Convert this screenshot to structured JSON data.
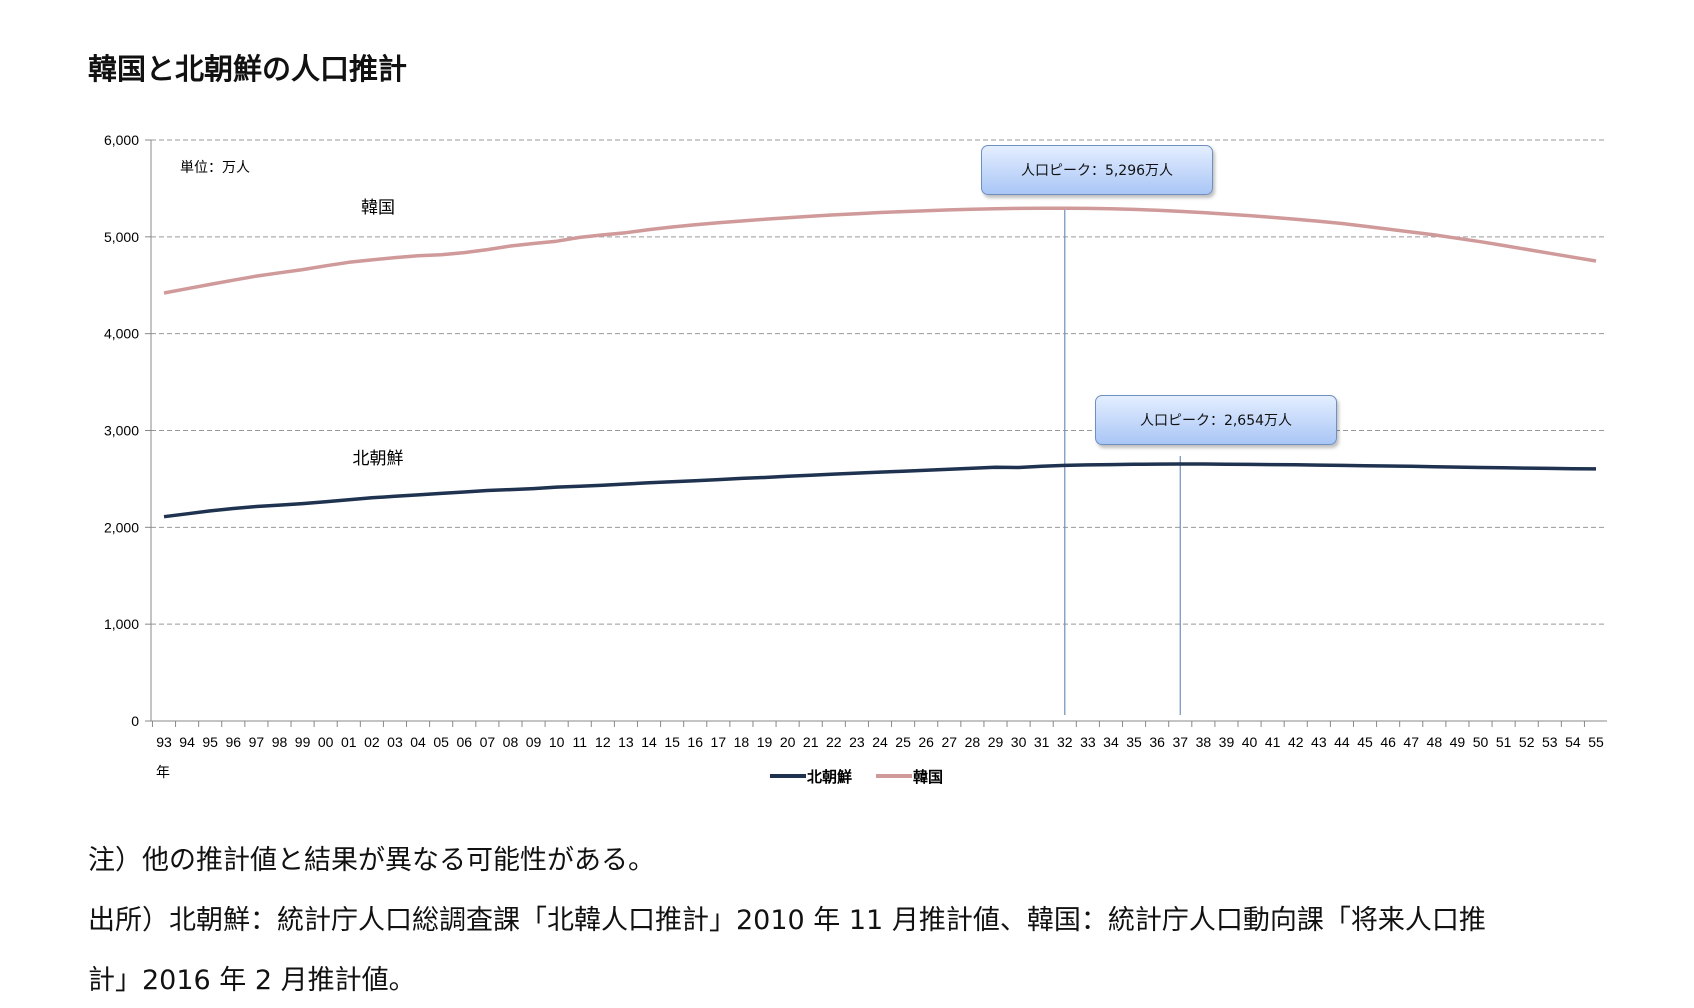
{
  "title": "韓国と北朝鮮の人口推計",
  "chart_data": {
    "type": "line",
    "unit_label": "単位：万人",
    "xlabel": "年",
    "ylim": [
      0,
      6000
    ],
    "yticks": [
      "0",
      "1,000",
      "2,000",
      "3,000",
      "4,000",
      "5,000",
      "6,000"
    ],
    "grid": true,
    "legend_position": "bottom",
    "categories": [
      "93",
      "94",
      "95",
      "96",
      "97",
      "98",
      "99",
      "00",
      "01",
      "02",
      "03",
      "04",
      "05",
      "06",
      "07",
      "08",
      "09",
      "10",
      "11",
      "12",
      "13",
      "14",
      "15",
      "16",
      "17",
      "18",
      "19",
      "20",
      "21",
      "22",
      "23",
      "24",
      "25",
      "26",
      "27",
      "28",
      "29",
      "30",
      "31",
      "32",
      "33",
      "34",
      "35",
      "36",
      "37",
      "38",
      "39",
      "40",
      "41",
      "42",
      "43",
      "44",
      "45",
      "46",
      "47",
      "48",
      "49",
      "50",
      "51",
      "52",
      "53",
      "54",
      "55"
    ],
    "series": [
      {
        "name": "北朝鮮",
        "color": "#1f3350",
        "inline_label": "北朝鮮",
        "values": [
          2110,
          2140,
          2170,
          2195,
          2215,
          2230,
          2245,
          2265,
          2285,
          2305,
          2320,
          2335,
          2350,
          2365,
          2380,
          2390,
          2400,
          2415,
          2425,
          2435,
          2448,
          2460,
          2470,
          2482,
          2493,
          2505,
          2515,
          2527,
          2538,
          2550,
          2560,
          2570,
          2580,
          2590,
          2600,
          2610,
          2620,
          2618,
          2630,
          2640,
          2645,
          2648,
          2651,
          2653,
          2654,
          2654,
          2652,
          2650,
          2648,
          2646,
          2643,
          2640,
          2636,
          2633,
          2630,
          2626,
          2622,
          2618,
          2615,
          2612,
          2609,
          2606,
          2603
        ]
      },
      {
        "name": "韓国",
        "color": "#d09a9a",
        "inline_label": "韓国",
        "values": [
          4420,
          4464,
          4509,
          4552,
          4595,
          4629,
          4662,
          4701,
          4737,
          4762,
          4786,
          4804,
          4814,
          4837,
          4868,
          4905,
          4931,
          4955,
          4994,
          5020,
          5043,
          5075,
          5102,
          5125,
          5145,
          5164,
          5181,
          5197,
          5212,
          5226,
          5239,
          5251,
          5261,
          5270,
          5278,
          5285,
          5290,
          5294,
          5296,
          5296,
          5294,
          5289,
          5283,
          5274,
          5263,
          5250,
          5235,
          5219,
          5201,
          5181,
          5160,
          5138,
          5110,
          5080,
          5050,
          5020,
          4985,
          4950,
          4910,
          4870,
          4830,
          4790,
          4750
        ]
      }
    ],
    "annotations": [
      {
        "text": "人口ピーク：5,296万人",
        "x": "32",
        "series": "韓国"
      },
      {
        "text": "人口ピーク：2,654万人",
        "x": "37",
        "series": "北朝鮮"
      }
    ]
  },
  "notes": [
    "注）他の推計値と結果が異なる可能性がある。",
    "出所）北朝鮮：統計庁人口総調査課「北韓人口推計」2010 年 11 月推計値、韓国：統計庁人口動向課「将来人口推",
    "計」2016 年 2 月推計値。"
  ]
}
